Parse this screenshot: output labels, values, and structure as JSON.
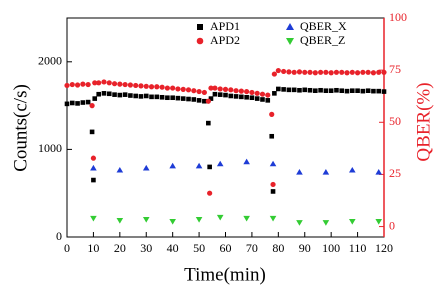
{
  "chart_data": {
    "type": "scatter",
    "xlabel": "Time(min)",
    "ylabel": "Counts(c/s)",
    "y2label": "QBER(%)",
    "y2color": "#e8222a",
    "xlim": [
      0,
      120
    ],
    "xticks": [
      0,
      10,
      20,
      30,
      40,
      50,
      60,
      70,
      80,
      90,
      100,
      110,
      120
    ],
    "ylim": [
      0,
      2500
    ],
    "yticks": [
      0,
      1000,
      2000
    ],
    "y2lim": [
      -5,
      100
    ],
    "y2ticks": [
      0,
      25,
      50,
      75,
      100
    ],
    "series": [
      {
        "name": "APD1",
        "color": "#000000",
        "marker": "square",
        "x": [
          0,
          2,
          4,
          6,
          8,
          9.5,
          10,
          10.5,
          12,
          14,
          16,
          18,
          20,
          22,
          24,
          26,
          28,
          30,
          32,
          34,
          36,
          38,
          40,
          42,
          44,
          46,
          48,
          50,
          52,
          53.5,
          54,
          54.5,
          56,
          58,
          60,
          62,
          64,
          66,
          68,
          70,
          72,
          74,
          76,
          77.5,
          78,
          78.5,
          80,
          82,
          84,
          86,
          88,
          90,
          92,
          94,
          96,
          98,
          100,
          102,
          104,
          106,
          108,
          110,
          112,
          114,
          116,
          118,
          120
        ],
        "values": [
          1520,
          1530,
          1525,
          1535,
          1540,
          1200,
          650,
          1580,
          1630,
          1640,
          1635,
          1625,
          1620,
          1625,
          1615,
          1610,
          1605,
          1610,
          1600,
          1600,
          1595,
          1590,
          1590,
          1585,
          1580,
          1575,
          1570,
          1560,
          1550,
          1300,
          800,
          1580,
          1630,
          1625,
          1620,
          1610,
          1605,
          1600,
          1595,
          1590,
          1580,
          1570,
          1560,
          1150,
          520,
          1640,
          1690,
          1685,
          1680,
          1680,
          1675,
          1680,
          1675,
          1670,
          1675,
          1670,
          1670,
          1675,
          1670,
          1665,
          1670,
          1670,
          1665,
          1670,
          1665,
          1665,
          1660
        ]
      },
      {
        "name": "APD2",
        "color": "#e8222a",
        "marker": "circle",
        "x": [
          0,
          2,
          4,
          6,
          8,
          9.5,
          10,
          10.5,
          12,
          14,
          16,
          18,
          20,
          22,
          24,
          26,
          28,
          30,
          32,
          34,
          36,
          38,
          40,
          42,
          44,
          46,
          48,
          50,
          52,
          53.5,
          54,
          54.5,
          56,
          58,
          60,
          62,
          64,
          66,
          68,
          70,
          72,
          74,
          76,
          77.5,
          78,
          78.5,
          80,
          82,
          84,
          86,
          88,
          90,
          92,
          94,
          96,
          98,
          100,
          102,
          104,
          106,
          108,
          110,
          112,
          114,
          116,
          118,
          120
        ],
        "values": [
          1730,
          1740,
          1735,
          1745,
          1740,
          1500,
          900,
          1760,
          1760,
          1770,
          1760,
          1750,
          1745,
          1740,
          1735,
          1730,
          1725,
          1720,
          1715,
          1715,
          1710,
          1700,
          1700,
          1690,
          1685,
          1680,
          1670,
          1660,
          1650,
          1550,
          500,
          1700,
          1700,
          1690,
          1685,
          1680,
          1670,
          1665,
          1660,
          1650,
          1640,
          1630,
          1620,
          1400,
          600,
          1860,
          1900,
          1890,
          1885,
          1880,
          1885,
          1880,
          1880,
          1875,
          1880,
          1880,
          1875,
          1880,
          1880,
          1875,
          1880,
          1875,
          1880,
          1880,
          1875,
          1880,
          1880
        ]
      },
      {
        "name": "QBER_X",
        "color": "#1e3cd6",
        "marker": "triangle-up",
        "axis": "y2",
        "x": [
          10,
          20,
          30,
          40,
          50,
          58,
          68,
          78,
          88,
          98,
          108,
          118
        ],
        "values": [
          28,
          27,
          28,
          29,
          29,
          30,
          31,
          30,
          26,
          26,
          27,
          26
        ]
      },
      {
        "name": "QBER_Z",
        "color": "#33cc33",
        "marker": "triangle-down",
        "axis": "y2",
        "x": [
          10,
          20,
          30,
          40,
          50,
          58,
          68,
          78,
          88,
          98,
          108,
          118
        ],
        "values": [
          4,
          3,
          3.5,
          2.5,
          3.5,
          4.5,
          4,
          4,
          2,
          2,
          2.5,
          2.5
        ]
      }
    ]
  }
}
